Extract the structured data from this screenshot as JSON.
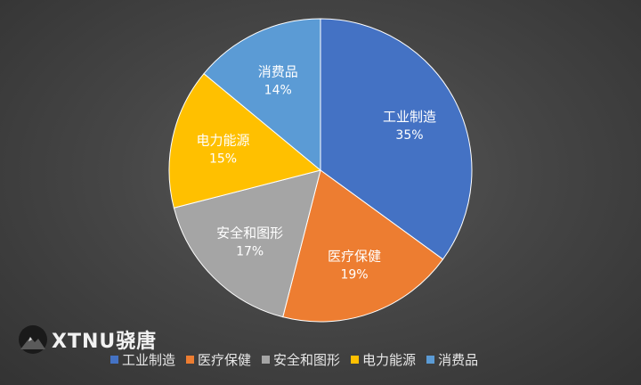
{
  "chart_data": {
    "type": "pie",
    "categories": [
      "工业制造",
      "医疗保健",
      "安全和图形",
      "电力能源",
      "消费品"
    ],
    "values": [
      35,
      19,
      17,
      15,
      14
    ],
    "labels": [
      "35%",
      "19%",
      "17%",
      "15%",
      "14%"
    ],
    "colors": [
      "#4472C4",
      "#ED7D31",
      "#A5A5A5",
      "#FFC000",
      "#5B9BD5"
    ],
    "legend_position": "bottom"
  },
  "watermark": {
    "text": "XTNU骁唐"
  }
}
